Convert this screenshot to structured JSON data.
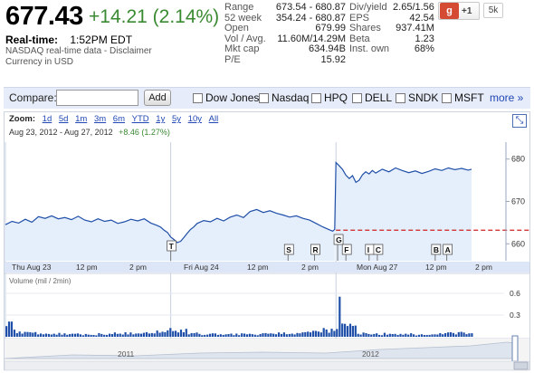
{
  "quote": {
    "price": "677.43",
    "change": "+14.21 (2.14%)",
    "realtime_label": "Real-time:",
    "realtime_time": "1:52PM EDT",
    "source": "NASDAQ real-time data - Disclaimer",
    "currency": "Currency in USD"
  },
  "stats_left": [
    {
      "k": "Range",
      "v": "673.54 - 680.87"
    },
    {
      "k": "52 week",
      "v": "354.24 - 680.87"
    },
    {
      "k": "Open",
      "v": "679.99"
    },
    {
      "k": "Vol / Avg.",
      "v": "11.60M/14.29M"
    },
    {
      "k": "Mkt cap",
      "v": "634.94B"
    },
    {
      "k": "P/E",
      "v": "15.92"
    }
  ],
  "stats_right": [
    {
      "k": "Div/yield",
      "v": "2.65/1.56"
    },
    {
      "k": "EPS",
      "v": "42.54"
    },
    {
      "k": "Shares",
      "v": "937.41M"
    },
    {
      "k": "Beta",
      "v": "1.23"
    },
    {
      "k": "Inst. own",
      "v": "68%"
    }
  ],
  "social": {
    "g": "g",
    "plus": "+1",
    "count": "5k"
  },
  "compare": {
    "label": "Compare:",
    "add": "Add",
    "tickers": [
      "Dow Jones",
      "Nasdaq",
      "HPQ",
      "DELL",
      "SNDK",
      "MSFT"
    ],
    "more": "more »"
  },
  "zoom": {
    "label": "Zoom:",
    "items": [
      "1d",
      "5d",
      "1m",
      "3m",
      "6m",
      "YTD",
      "1y",
      "5y",
      "10y",
      "All"
    ]
  },
  "range": {
    "dates": "Aug 23, 2012 - Aug 27, 2012",
    "change": "+8.46 (1.27%)"
  },
  "colors": {
    "up": "#3a8a32",
    "link": "#2147b4",
    "line": "#1f4fa8",
    "fill": "#e5eefb",
    "ref": "#cc2222"
  },
  "chart_data": {
    "type": "line",
    "y_ticks": [
      "680",
      "670",
      "660"
    ],
    "y_ticks_num": [
      680,
      670,
      660
    ],
    "ylim": [
      656,
      684
    ],
    "previous_close": 663.22,
    "x_labels": [
      "Thu Aug 23",
      "12 pm",
      "2 pm",
      "Fri Aug 24",
      "12 pm",
      "2 pm",
      "Mon Aug 27",
      "12 pm",
      "2 pm"
    ],
    "price": [
      [
        0,
        664.5
      ],
      [
        2,
        665.3
      ],
      [
        4,
        664.9
      ],
      [
        6,
        665.8
      ],
      [
        8,
        665.1
      ],
      [
        10,
        666.4
      ],
      [
        12,
        666.0
      ],
      [
        14,
        666.6
      ],
      [
        16,
        665.9
      ],
      [
        18,
        666.2
      ],
      [
        20,
        665.7
      ],
      [
        22,
        666.5
      ],
      [
        24,
        665.6
      ],
      [
        26,
        665.2
      ],
      [
        28,
        665.9
      ],
      [
        30,
        665.3
      ],
      [
        32,
        665.6
      ],
      [
        34,
        664.8
      ],
      [
        36,
        665.2
      ],
      [
        38,
        665.8
      ],
      [
        40,
        665.4
      ],
      [
        42,
        665.9
      ],
      [
        44,
        664.9
      ],
      [
        46,
        664.3
      ],
      [
        47,
        663.9
      ],
      [
        48,
        663.2
      ],
      [
        49,
        662.7
      ],
      [
        50,
        661.6
      ],
      [
        51,
        661.0
      ],
      [
        52,
        660.3
      ],
      [
        53,
        660.6
      ],
      [
        54,
        661.5
      ],
      [
        55,
        662.5
      ],
      [
        56,
        663.4
      ],
      [
        57,
        664.0
      ],
      [
        58,
        664.8
      ],
      [
        60,
        665.5
      ],
      [
        62,
        665.2
      ],
      [
        64,
        666.0
      ],
      [
        66,
        665.4
      ],
      [
        68,
        666.3
      ],
      [
        70,
        666.8
      ],
      [
        72,
        666.2
      ],
      [
        74,
        667.6
      ],
      [
        76,
        668.1
      ],
      [
        78,
        667.4
      ],
      [
        80,
        667.8
      ],
      [
        82,
        667.2
      ],
      [
        84,
        666.8
      ],
      [
        86,
        666.3
      ],
      [
        88,
        666.6
      ],
      [
        90,
        666.0
      ],
      [
        92,
        665.6
      ],
      [
        94,
        664.8
      ],
      [
        96,
        664.0
      ],
      [
        98,
        663.3
      ],
      [
        99,
        663.0
      ],
      [
        99.6,
        663.4
      ],
      [
        100,
        679.2
      ],
      [
        101,
        678.4
      ],
      [
        102,
        677.5
      ],
      [
        103,
        676.2
      ],
      [
        104,
        675.4
      ],
      [
        105,
        676.1
      ],
      [
        106,
        674.5
      ],
      [
        107,
        675.0
      ],
      [
        108,
        676.3
      ],
      [
        109,
        677.0
      ],
      [
        110,
        676.5
      ],
      [
        111,
        677.3
      ],
      [
        112,
        676.7
      ],
      [
        114,
        677.6
      ],
      [
        116,
        677.0
      ],
      [
        118,
        677.9
      ],
      [
        120,
        677.3
      ],
      [
        122,
        676.8
      ],
      [
        124,
        677.2
      ],
      [
        126,
        676.6
      ],
      [
        128,
        677.1
      ],
      [
        130,
        677.7
      ],
      [
        132,
        677.3
      ],
      [
        134,
        677.9
      ],
      [
        136,
        677.5
      ],
      [
        138,
        677.8
      ],
      [
        140,
        677.4
      ],
      [
        141,
        677.6
      ]
    ],
    "volume_axis": [
      "0.6",
      "0.3"
    ],
    "volume_axis_num": [
      0.6,
      0.3
    ],
    "volume_label": "Volume (mil / 2min)",
    "news_flags": [
      "T",
      "S",
      "R",
      "G",
      "F",
      "I",
      "C",
      "B",
      "A"
    ],
    "overview_labels": [
      "2011",
      "2012"
    ]
  }
}
